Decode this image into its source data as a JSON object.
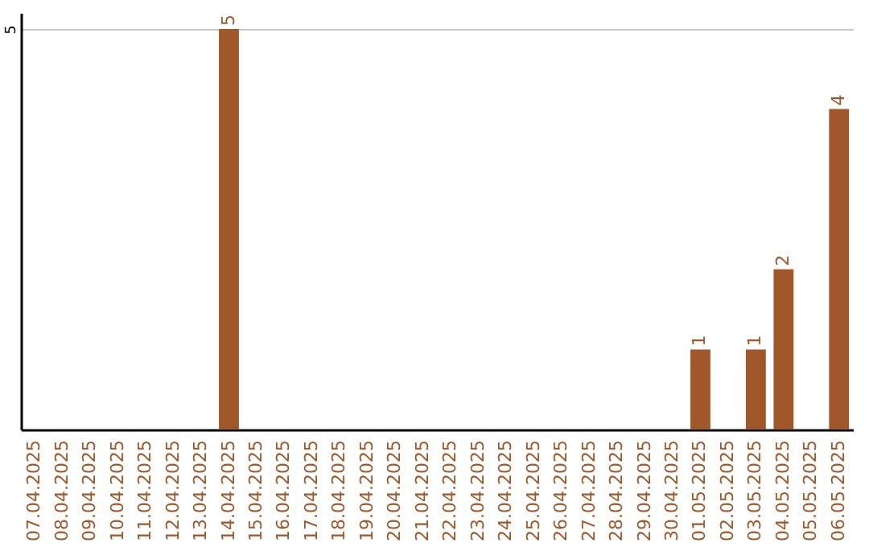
{
  "chart_data": {
    "type": "bar",
    "categories": [
      "07.04.2025",
      "08.04.2025",
      "09.04.2025",
      "10.04.2025",
      "11.04.2025",
      "12.04.2025",
      "13.04.2025",
      "14.04.2025",
      "15.04.2025",
      "16.04.2025",
      "17.04.2025",
      "18.04.2025",
      "19.04.2025",
      "20.04.2025",
      "21.04.2025",
      "22.04.2025",
      "23.04.2025",
      "24.04.2025",
      "25.04.2025",
      "26.04.2025",
      "27.04.2025",
      "28.04.2025",
      "29.04.2025",
      "30.04.2025",
      "01.05.2025",
      "02.05.2025",
      "03.05.2025",
      "04.05.2025",
      "05.05.2025",
      "06.05.2025"
    ],
    "values": [
      0,
      0,
      0,
      0,
      0,
      0,
      0,
      5,
      0,
      0,
      0,
      0,
      0,
      0,
      0,
      0,
      0,
      0,
      0,
      0,
      0,
      0,
      0,
      0,
      1,
      0,
      1,
      2,
      0,
      4
    ],
    "value_labels": [
      null,
      null,
      null,
      null,
      null,
      null,
      null,
      "5",
      null,
      null,
      null,
      null,
      null,
      null,
      null,
      null,
      null,
      null,
      null,
      null,
      null,
      null,
      null,
      null,
      "1",
      null,
      "1",
      "2",
      null,
      "4"
    ],
    "color": "#a0582a",
    "ylim": [
      0,
      5.2
    ],
    "yticks": [
      5
    ],
    "grid": "y"
  }
}
